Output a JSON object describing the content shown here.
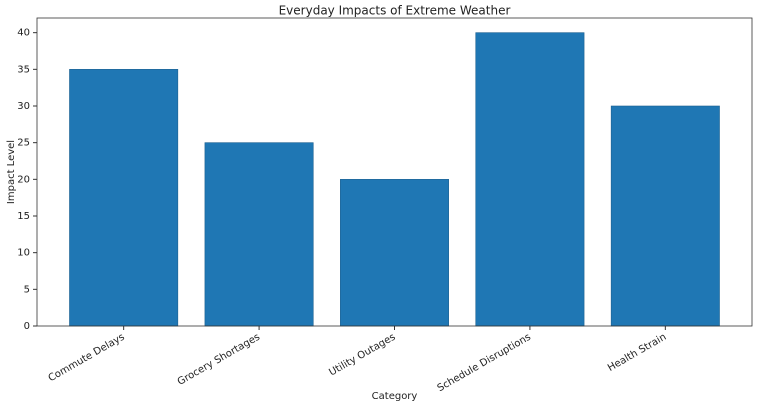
{
  "chart_data": {
    "type": "bar",
    "title": "Everyday Impacts of Extreme Weather",
    "x_label": "Category",
    "y_label": "Impact Level",
    "categories": [
      "Commute Delays",
      "Grocery Shortages",
      "Utility Outages",
      "Schedule Disruptions",
      "Health Strain"
    ],
    "values": [
      35,
      25,
      20,
      40,
      30
    ],
    "color": "#1f77b4",
    "ylim": [
      0,
      42
    ],
    "yticks": [
      0,
      5,
      10,
      15,
      20,
      25,
      30,
      35,
      40
    ],
    "grid": false
  }
}
